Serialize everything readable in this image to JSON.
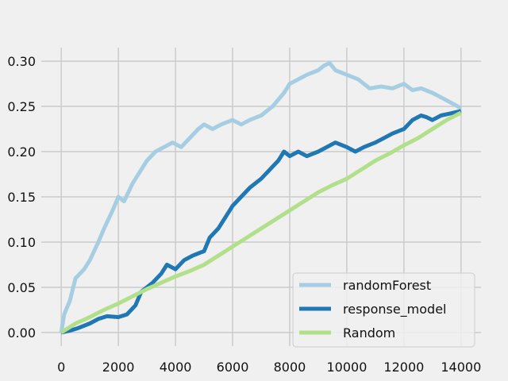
{
  "chart_data": {
    "type": "line",
    "title": "",
    "xlabel": "",
    "ylabel": "",
    "xlim": [
      -700,
      14700
    ],
    "ylim": [
      -0.015,
      0.315
    ],
    "xticks": [
      0,
      2000,
      4000,
      6000,
      8000,
      10000,
      12000,
      14000
    ],
    "xtick_labels": [
      "0",
      "2000",
      "4000",
      "6000",
      "8000",
      "10000",
      "12000",
      "14000"
    ],
    "yticks": [
      0.0,
      0.05,
      0.1,
      0.15,
      0.2,
      0.25,
      0.3
    ],
    "ytick_labels": [
      "0.00",
      "0.05",
      "0.10",
      "0.15",
      "0.20",
      "0.25",
      "0.30"
    ],
    "grid": true,
    "legend_position": "lower-right",
    "series": [
      {
        "name": "randomForest",
        "color": "#a6cee3",
        "x": [
          0,
          100,
          300,
          500,
          800,
          1000,
          1300,
          1500,
          1800,
          2000,
          2200,
          2500,
          2800,
          3000,
          3300,
          3600,
          3900,
          4200,
          4500,
          4800,
          5000,
          5300,
          5600,
          6000,
          6300,
          6600,
          7000,
          7400,
          7800,
          8000,
          8300,
          8600,
          9000,
          9200,
          9400,
          9600,
          10000,
          10400,
          10800,
          11200,
          11600,
          12000,
          12300,
          12600,
          13000,
          13300,
          13600,
          14000
        ],
        "y": [
          0.0,
          0.02,
          0.035,
          0.06,
          0.07,
          0.08,
          0.1,
          0.115,
          0.135,
          0.15,
          0.145,
          0.165,
          0.18,
          0.19,
          0.2,
          0.205,
          0.21,
          0.205,
          0.215,
          0.225,
          0.23,
          0.225,
          0.23,
          0.235,
          0.23,
          0.235,
          0.24,
          0.25,
          0.265,
          0.275,
          0.28,
          0.285,
          0.29,
          0.295,
          0.298,
          0.29,
          0.285,
          0.28,
          0.27,
          0.272,
          0.27,
          0.275,
          0.268,
          0.27,
          0.265,
          0.26,
          0.255,
          0.248
        ]
      },
      {
        "name": "response_model",
        "color": "#1f78b4",
        "x": [
          0,
          300,
          600,
          1000,
          1300,
          1600,
          2000,
          2300,
          2600,
          2800,
          3000,
          3200,
          3500,
          3700,
          4000,
          4300,
          4600,
          5000,
          5200,
          5500,
          5800,
          6000,
          6300,
          6600,
          7000,
          7300,
          7600,
          7800,
          8000,
          8300,
          8600,
          9000,
          9300,
          9600,
          10000,
          10300,
          10600,
          11000,
          11300,
          11600,
          12000,
          12300,
          12600,
          12800,
          13000,
          13300,
          13600,
          14000
        ],
        "y": [
          0.0,
          0.002,
          0.005,
          0.01,
          0.015,
          0.018,
          0.017,
          0.02,
          0.03,
          0.045,
          0.05,
          0.055,
          0.065,
          0.075,
          0.07,
          0.08,
          0.085,
          0.09,
          0.105,
          0.115,
          0.13,
          0.14,
          0.15,
          0.16,
          0.17,
          0.18,
          0.19,
          0.2,
          0.195,
          0.2,
          0.195,
          0.2,
          0.205,
          0.21,
          0.205,
          0.2,
          0.205,
          0.21,
          0.215,
          0.22,
          0.225,
          0.235,
          0.24,
          0.238,
          0.235,
          0.24,
          0.242,
          0.245
        ]
      },
      {
        "name": "Random",
        "color": "#b2df8a",
        "x": [
          0,
          500,
          1000,
          1500,
          2000,
          2500,
          3000,
          3500,
          4000,
          4500,
          5000,
          5500,
          6000,
          6500,
          7000,
          7500,
          8000,
          8500,
          9000,
          9500,
          10000,
          10500,
          11000,
          11500,
          12000,
          12500,
          13000,
          13500,
          14000
        ],
        "y": [
          0.0,
          0.01,
          0.017,
          0.025,
          0.032,
          0.04,
          0.048,
          0.055,
          0.062,
          0.068,
          0.075,
          0.085,
          0.095,
          0.105,
          0.115,
          0.125,
          0.135,
          0.145,
          0.155,
          0.163,
          0.17,
          0.18,
          0.19,
          0.198,
          0.207,
          0.215,
          0.225,
          0.235,
          0.243
        ]
      }
    ]
  }
}
